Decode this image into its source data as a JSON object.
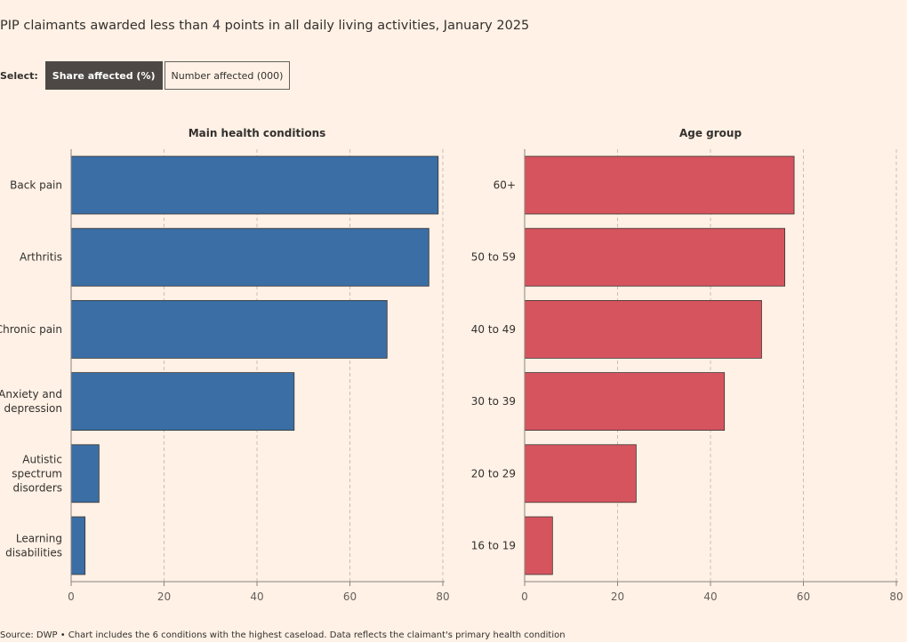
{
  "title": "PIP claimants awarded less than 4 points in all daily living activities, January 2025",
  "controls": {
    "select_label": "Select:",
    "options": [
      "Share affected (%)",
      "Number affected (000)"
    ],
    "selected": "Share affected (%)"
  },
  "source": "Source: DWP • Chart includes the 6 conditions with the highest caseload. Data reflects the claimant's primary health condition",
  "colors": {
    "background": "#fff1e5",
    "health_bars": "#3a6ea5",
    "age_bars": "#d6545e",
    "grid": "#c9bfb7",
    "axis": "#8a8480"
  },
  "chart_data": [
    {
      "type": "bar",
      "orientation": "horizontal",
      "title": "Main health conditions",
      "categories": [
        "Back pain",
        "Arthritis",
        "Chronic pain",
        "Anxiety and depression",
        "Autistic spectrum disorders",
        "Learning disabilities"
      ],
      "values": [
        79,
        77,
        68,
        48,
        6,
        3
      ],
      "xlim": [
        0,
        80
      ],
      "ticks": [
        0,
        20,
        40,
        60,
        80
      ],
      "grid": true
    },
    {
      "type": "bar",
      "orientation": "horizontal",
      "title": "Age group",
      "categories": [
        "60+",
        "50 to 59",
        "40 to 49",
        "30 to 39",
        "20 to 29",
        "16 to 19"
      ],
      "values": [
        58,
        56,
        51,
        43,
        24,
        6
      ],
      "xlim": [
        0,
        80
      ],
      "ticks": [
        0,
        20,
        40,
        60,
        80
      ],
      "grid": true
    }
  ]
}
